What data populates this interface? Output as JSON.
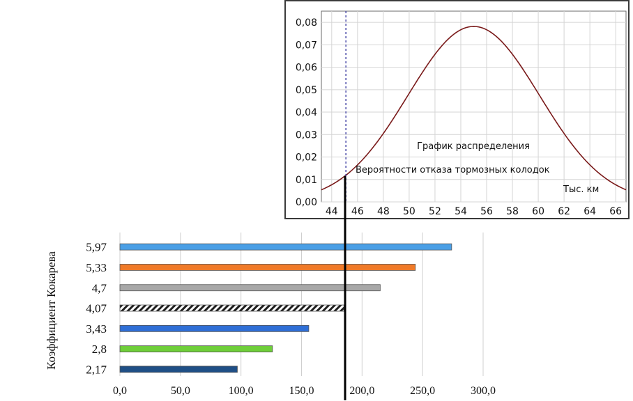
{
  "chart_data": [
    {
      "type": "line",
      "panel": "inset",
      "title_line1": "График распределения",
      "title_line2": "Вероятности отказа тормозных колодок",
      "unit_label": "Тыс. км",
      "xlim": [
        43.2,
        66.8
      ],
      "ylim": [
        0,
        0.085
      ],
      "x_ticks": [
        "44",
        "46",
        "48",
        "50",
        "52",
        "54",
        "56",
        "58",
        "60",
        "62",
        "64",
        "66"
      ],
      "x_tick_values": [
        44,
        46,
        48,
        50,
        52,
        54,
        56,
        58,
        60,
        62,
        64,
        66
      ],
      "y_ticks": [
        "0,00",
        "0,01",
        "0,02",
        "0,03",
        "0,04",
        "0,05",
        "0,06",
        "0,07",
        "0,08"
      ],
      "y_tick_values": [
        0,
        0.01,
        0.02,
        0.03,
        0.04,
        0.05,
        0.06,
        0.07,
        0.08
      ],
      "grid": true,
      "curve": {
        "distribution": "normal",
        "mean": 55,
        "std": 5.1,
        "x": [
          43.2,
          44,
          45,
          46,
          47,
          48,
          49,
          50,
          51,
          52,
          53,
          54,
          55,
          56,
          57,
          58,
          59,
          60,
          61,
          62,
          63,
          64,
          65,
          66,
          66.8
        ],
        "y": [
          0.0054,
          0.0077,
          0.0114,
          0.0162,
          0.0222,
          0.0292,
          0.0393,
          0.048,
          0.0577,
          0.0658,
          0.0722,
          0.0766,
          0.0782,
          0.0766,
          0.0722,
          0.0658,
          0.0577,
          0.048,
          0.0393,
          0.0292,
          0.0222,
          0.0162,
          0.0114,
          0.0077,
          0.0054
        ],
        "color": "#7a1a1a"
      },
      "marker_dashed_x": 45.1,
      "marker_solid_x": 45.2,
      "marker_solid_y": 0.0115
    },
    {
      "type": "bar",
      "panel": "main",
      "orientation": "horizontal",
      "ylabel": "Коэффициент Кокарева",
      "categories": [
        "5,97",
        "5,33",
        "4,7",
        "4,07",
        "3,43",
        "2,8",
        "2,17"
      ],
      "values": [
        274,
        244,
        215,
        185,
        156,
        126,
        97
      ],
      "colors": [
        "#4a9fe6",
        "#f07a28",
        "#a8a8a8",
        "hatch",
        "#2f6fd6",
        "#6fcf3a",
        "#1f4f86"
      ],
      "xlim": [
        0,
        300
      ],
      "x_ticks": [
        "0,0",
        "50,0",
        "100,0",
        "150,0",
        "200,0",
        "250,0",
        "300,0"
      ],
      "x_tick_values": [
        0,
        50,
        100,
        150,
        200,
        250,
        300
      ],
      "grid": true,
      "vertical_marker_value": 186
    }
  ]
}
